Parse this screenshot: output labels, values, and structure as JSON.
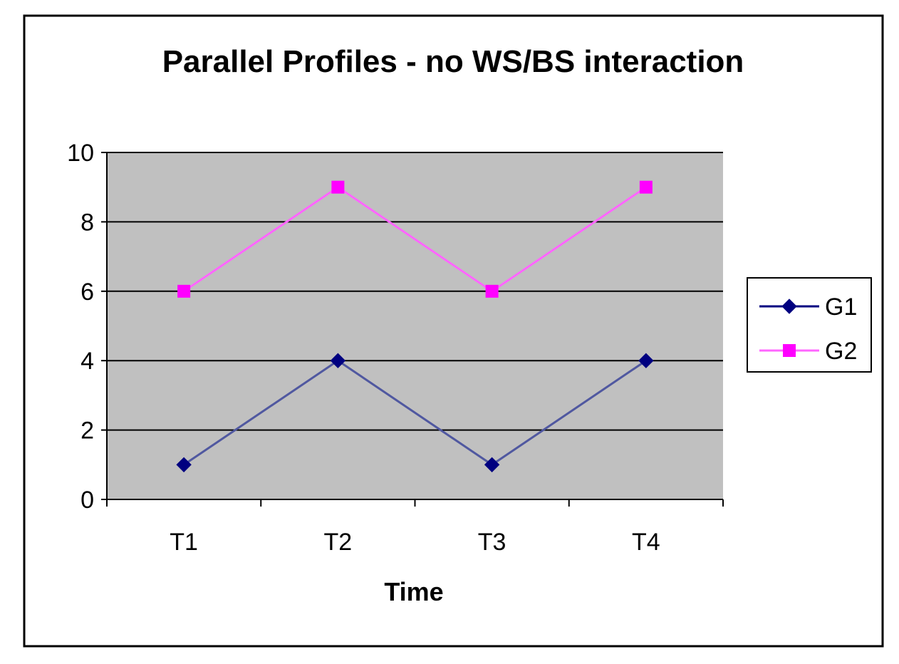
{
  "chart_data": {
    "type": "line",
    "title": "Parallel Profiles - no WS/BS interaction",
    "xlabel": "Time",
    "ylabel": "",
    "categories": [
      "T1",
      "T2",
      "T3",
      "T4"
    ],
    "ylim": [
      0,
      10
    ],
    "yticks": [
      "0",
      "2",
      "4",
      "6",
      "8",
      "10"
    ],
    "grid": "horizontal",
    "legend_position": "right",
    "plot_background": "#c0c0c0",
    "series": [
      {
        "name": "G1",
        "values": [
          1,
          4,
          1,
          4
        ],
        "color": "#000080",
        "marker": "diamond"
      },
      {
        "name": "G2",
        "values": [
          6,
          9,
          6,
          9
        ],
        "color": "#ff00ff",
        "marker": "square"
      }
    ]
  }
}
